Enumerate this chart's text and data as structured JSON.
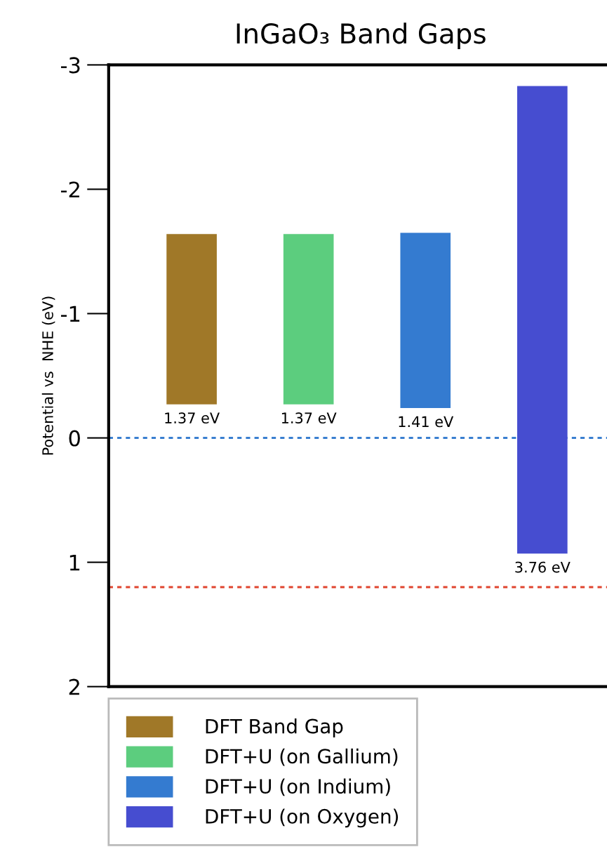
{
  "chart_data": {
    "type": "bar",
    "title": "InGaO₃ Band Gaps",
    "ylabel": "Potential vs  NHE (eV)",
    "categories": [
      null,
      null,
      null,
      null
    ],
    "series": [
      {
        "name": "DFT Band Gap",
        "color": "#a07828",
        "values": [
          1.37,
          null,
          null,
          null
        ],
        "base": [
          -1.64,
          null,
          null,
          null
        ],
        "value_labels": [
          "1.37 eV",
          null,
          null,
          null
        ]
      },
      {
        "name": "DFT+U (on Gallium)",
        "color": "#5ccd7e",
        "values": [
          null,
          1.37,
          null,
          null
        ],
        "base": [
          null,
          -1.64,
          null,
          null
        ],
        "value_labels": [
          null,
          "1.37 eV",
          null,
          null
        ]
      },
      {
        "name": "DFT+U (on Indium)",
        "color": "#347bd0",
        "values": [
          null,
          null,
          1.41,
          null
        ],
        "base": [
          null,
          null,
          -1.65,
          null
        ],
        "value_labels": [
          null,
          null,
          "1.41 eV",
          null
        ]
      },
      {
        "name": "DFT+U (on Oxygen)",
        "color": "#464dd0",
        "values": [
          null,
          null,
          null,
          3.76
        ],
        "base": [
          null,
          null,
          null,
          -2.83
        ],
        "value_labels": [
          null,
          null,
          null,
          "3.76 eV"
        ]
      }
    ],
    "ylim": [
      2,
      -3
    ],
    "yticks": [
      -3,
      -2,
      -1,
      0,
      1,
      2
    ],
    "ref_lines": [
      {
        "axis": "y",
        "value": 0,
        "color": "#3a7fd0",
        "line_style": "dotted"
      },
      {
        "axis": "y",
        "value": 1.2,
        "color": "#e0452f",
        "line_style": "dotted"
      }
    ],
    "tick_labels": "y",
    "grid": false,
    "legend": "bottom"
  }
}
